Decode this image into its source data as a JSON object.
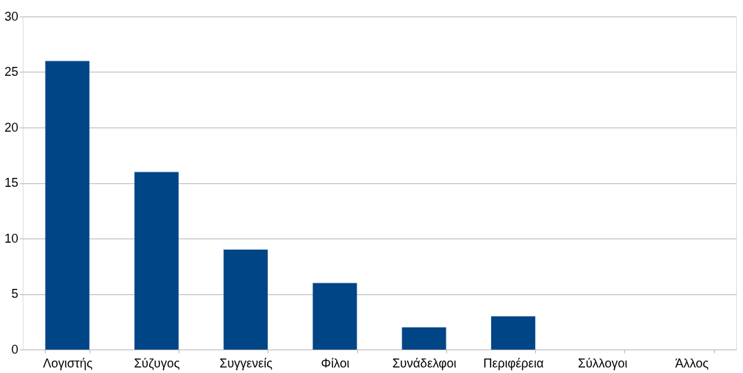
{
  "chart_data": {
    "type": "bar",
    "categories": [
      "Λογιστής",
      "Σύζυγος",
      "Συγγενείς",
      "Φίλοι",
      "Συνάδελφοι",
      "Περιφέρεια",
      "Σύλλογοι",
      "Άλλος"
    ],
    "values": [
      26,
      16,
      9,
      6,
      2,
      3,
      0,
      0
    ],
    "color": "#004586",
    "ylim": [
      0,
      30
    ],
    "yticks": [
      0,
      5,
      10,
      15,
      20,
      25,
      30
    ],
    "grid": "y"
  }
}
